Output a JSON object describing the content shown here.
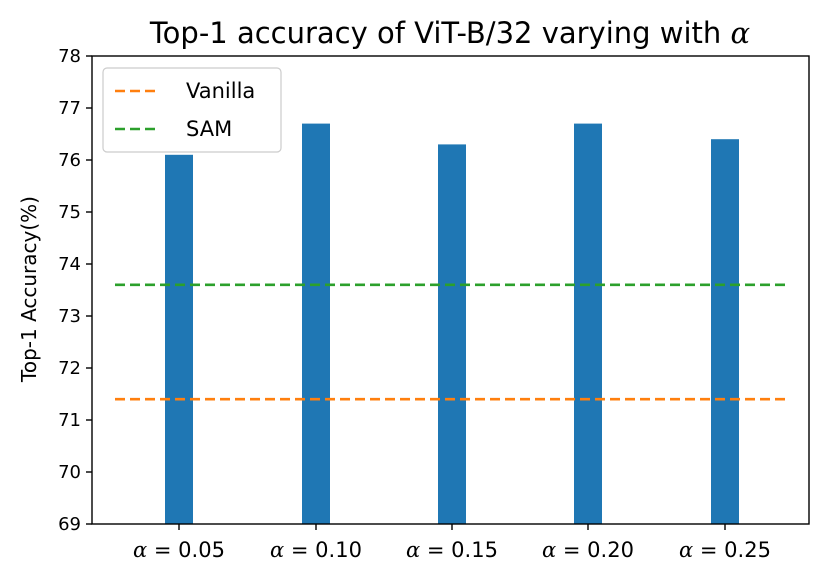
{
  "chart_data": {
    "type": "bar",
    "title_prefix": "Top-1 accuracy of ViT-B/32 varying with ",
    "title_symbol": "α",
    "xlabel": "",
    "ylabel": "Top-1 Accuracy(%)",
    "ylim": [
      69,
      78
    ],
    "yticks": [
      "69",
      "70",
      "71",
      "72",
      "73",
      "74",
      "75",
      "76",
      "77",
      "78"
    ],
    "categories": [
      {
        "symbol": "α",
        "text": " = 0.05"
      },
      {
        "symbol": "α",
        "text": " = 0.10"
      },
      {
        "symbol": "α",
        "text": " = 0.15"
      },
      {
        "symbol": "α",
        "text": " = 0.20"
      },
      {
        "symbol": "α",
        "text": " = 0.25"
      }
    ],
    "values": [
      76.1,
      76.7,
      76.3,
      76.7,
      76.4
    ],
    "bar_color": "#1f77b4",
    "reference_lines": [
      {
        "name": "Vanilla",
        "value": 71.4,
        "color": "#ff7f0e",
        "style": "dashed"
      },
      {
        "name": "SAM",
        "value": 73.6,
        "color": "#2ca02c",
        "style": "dashed"
      }
    ],
    "legend_position": "top-left",
    "grid": false
  }
}
